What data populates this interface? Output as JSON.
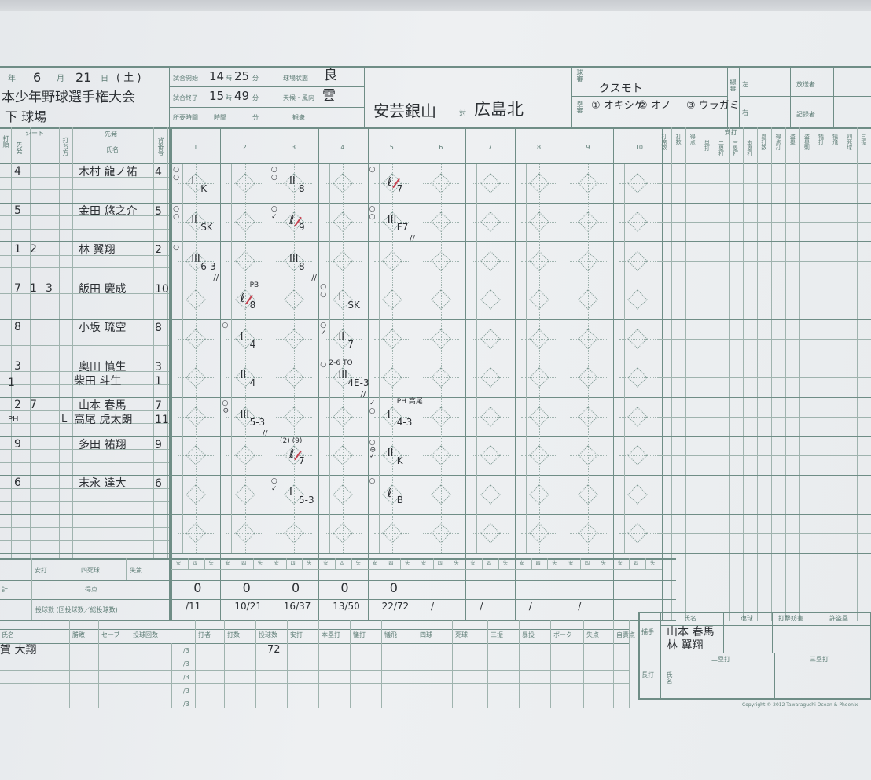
{
  "header": {
    "date_line": {
      "year_label": "年",
      "month": "6",
      "month_label": "月",
      "day": "21",
      "day_label": "日",
      "weekday": "( 土 )"
    },
    "tournament": "本少年野球選手権大会",
    "stadium": "下 球場",
    "start_label": "試合開始",
    "start_hour": "14",
    "hour_label": "時",
    "start_min": "25",
    "min_label": "分",
    "end_label": "試合終了",
    "end_hour": "15",
    "end_min": "49",
    "duration_label": "所要時間",
    "duration_hour_label": "時間",
    "field_cond_label": "球場状態",
    "field_cond": "良",
    "weather_label": "天候・風向",
    "weather": "雲",
    "crowd_label": "観衆",
    "home_team": "安芸銀山",
    "vs": "対",
    "away_team": "広島北",
    "plate_umpire_label": "球審",
    "plate_umpire": "クスモト",
    "base_umpire_label": "塁審",
    "base_umpires": [
      "① オキシゲ",
      "② オノ",
      "③ ウラガミ"
    ],
    "line_umpire_label": "線審",
    "line_left": "左",
    "line_right": "右",
    "broadcaster_label": "放送者",
    "recorder_label": "記録者"
  },
  "columns": {
    "order": "打順",
    "seat": "シート",
    "starter_seat": "先発",
    "bats": "打ち方",
    "starter": "先発",
    "name": "氏名",
    "number": "背番号",
    "innings": [
      "1",
      "2",
      "3",
      "4",
      "5",
      "6",
      "7",
      "8",
      "9",
      "10"
    ],
    "stats": [
      "打席数",
      "打数",
      "得点",
      "単打",
      "二塁打",
      "三塁打",
      "本塁打",
      "塁打数",
      "得点打",
      "盗塁",
      "盗塁刺",
      "犠打",
      "犠飛",
      "四死球",
      "三振"
    ],
    "hits_group": "安打"
  },
  "lineup": [
    {
      "seats": [
        "4"
      ],
      "name": "木村 龍ノ祐",
      "number": "4"
    },
    {
      "seats": [
        "5"
      ],
      "name": "金田 悠之介",
      "number": "5"
    },
    {
      "seats": [
        "1",
        "2"
      ],
      "name": "林 翼翔",
      "number": "2"
    },
    {
      "seats": [
        "7",
        "1",
        "3"
      ],
      "name": "飯田 慶成",
      "number": "10"
    },
    {
      "seats": [
        "8"
      ],
      "name": "小坂 琉空",
      "number": "8"
    },
    {
      "seats": [
        "3"
      ],
      "name": "奥田 慎生",
      "number": "3",
      "sub": {
        "seats": [
          "1"
        ],
        "name": "柴田 斗生",
        "number": "1"
      }
    },
    {
      "seats": [
        "2",
        "7"
      ],
      "name": "山本 春馬",
      "number": "7",
      "sub": {
        "seats": [
          "PH"
        ],
        "mark": "L",
        "name": "高尾 虎太朗",
        "number": "11"
      }
    },
    {
      "seats": [
        "9"
      ],
      "name": "多田 祐翔",
      "number": "9"
    },
    {
      "seats": [
        "6"
      ],
      "name": "末永 達大",
      "number": "6"
    }
  ],
  "plays": [
    {
      "inning": 1,
      "row": 1,
      "out": "I",
      "result": "K",
      "pitch": "○○"
    },
    {
      "inning": 1,
      "row": 2,
      "out": "II",
      "result": "SK",
      "pitch": "○○"
    },
    {
      "inning": 1,
      "row": 3,
      "out": "III",
      "result": "6-3",
      "pitch": "○",
      "end": "//"
    },
    {
      "inning": 2,
      "row": 4,
      "out": "ℓ",
      "result": "8",
      "note": "PB",
      "hit": true
    },
    {
      "inning": 2,
      "row": 5,
      "out": "I",
      "result": "4",
      "pitch": "○"
    },
    {
      "inning": 2,
      "row": 6,
      "out": "II",
      "result": "4"
    },
    {
      "inning": 2,
      "row": 7,
      "out": "III",
      "result": "5-3",
      "pitch": "○⊕",
      "end": "//"
    },
    {
      "inning": 3,
      "row": 1,
      "out": "II",
      "result": "8",
      "pitch": "○○"
    },
    {
      "inning": 3,
      "row": 2,
      "out": "ℓ",
      "result": "9",
      "pitch": "○✓",
      "hit": true
    },
    {
      "inning": 3,
      "row": 3,
      "out": "III",
      "result": "8",
      "end": "//"
    },
    {
      "inning": 3,
      "row": 8,
      "out": "ℓ",
      "result": "7",
      "note": "(2) (9)",
      "hit": true
    },
    {
      "inning": 3,
      "row": 9,
      "out": "I",
      "result": "5-3",
      "pitch": "○✓"
    },
    {
      "inning": 4,
      "row": 4,
      "out": "I",
      "result": "SK",
      "pitch": "○○"
    },
    {
      "inning": 4,
      "row": 5,
      "out": "II",
      "result": "7",
      "pitch": "○✓"
    },
    {
      "inning": 4,
      "row": 6,
      "out": "III",
      "result": "4E-3",
      "note": "2-6 TO",
      "pitch": "○",
      "end": "//"
    },
    {
      "inning": 5,
      "row": 1,
      "out": "ℓ",
      "result": "7",
      "pitch": "○",
      "hit": true
    },
    {
      "inning": 5,
      "row": 2,
      "out": "III",
      "result": "F7",
      "pitch": "○○",
      "end": "//"
    },
    {
      "inning": 5,
      "row": 7,
      "out": "I",
      "result": "4-3",
      "note": "PH 高尾",
      "pitch": "✓○"
    },
    {
      "inning": 5,
      "row": 8,
      "out": "II",
      "result": "K",
      "pitch": "○⊕✓"
    },
    {
      "inning": 5,
      "row": 9,
      "out": "ℓ",
      "result": "B",
      "pitch": "○"
    }
  ],
  "totals": {
    "hits_label": "安打",
    "walks_label": "四死球",
    "errors_label": "失策",
    "total_label": "計",
    "sub_labels": [
      "安",
      "四",
      "失"
    ],
    "runs_label": "得点",
    "runs": [
      "0",
      "0",
      "0",
      "0",
      "0",
      "",
      "",
      "",
      "",
      ""
    ],
    "pitches_label": "投球数 (回投球数／総投球数)",
    "pitches": [
      "/11",
      "10/21",
      "16/37",
      "13/50",
      "22/72",
      "/",
      "/",
      "/",
      "/",
      ""
    ]
  },
  "pitchers": {
    "headers": [
      "氏名",
      "勝敗",
      "セーブ",
      "投球回数",
      "打者",
      "打数",
      "投球数",
      "安打",
      "本塁打",
      "犠打",
      "犠飛",
      "四球",
      "死球",
      "三振",
      "暴投",
      "ボーク",
      "失点",
      "自責点"
    ],
    "rows": [
      {
        "name": "賀 大翔",
        "innings": "/3",
        "pitches": "72"
      },
      {
        "name": "",
        "innings": "/3",
        "pitches": ""
      },
      {
        "name": "",
        "innings": "/3",
        "pitches": ""
      },
      {
        "name": "",
        "innings": "/3",
        "pitches": ""
      },
      {
        "name": "",
        "innings": "/3",
        "pitches": ""
      }
    ]
  },
  "catchers": {
    "label": "捕手",
    "headers": [
      "氏名",
      "逸球",
      "打撃妨害",
      "許盗塁"
    ],
    "names": [
      "山本 春馬",
      "林 翼翔"
    ],
    "extra_label": "長打",
    "extra_name_label": "氏名",
    "doubles_label": "二塁打",
    "triples_label": "三塁打"
  },
  "copyright": "Copyright © 2012 Tawaraguchi Ocean & Phoenix",
  "colors": {
    "line": "#6f8d86",
    "ink": "#2b2f33",
    "red_ink": "#b5303c",
    "paper": "#eceff1"
  }
}
